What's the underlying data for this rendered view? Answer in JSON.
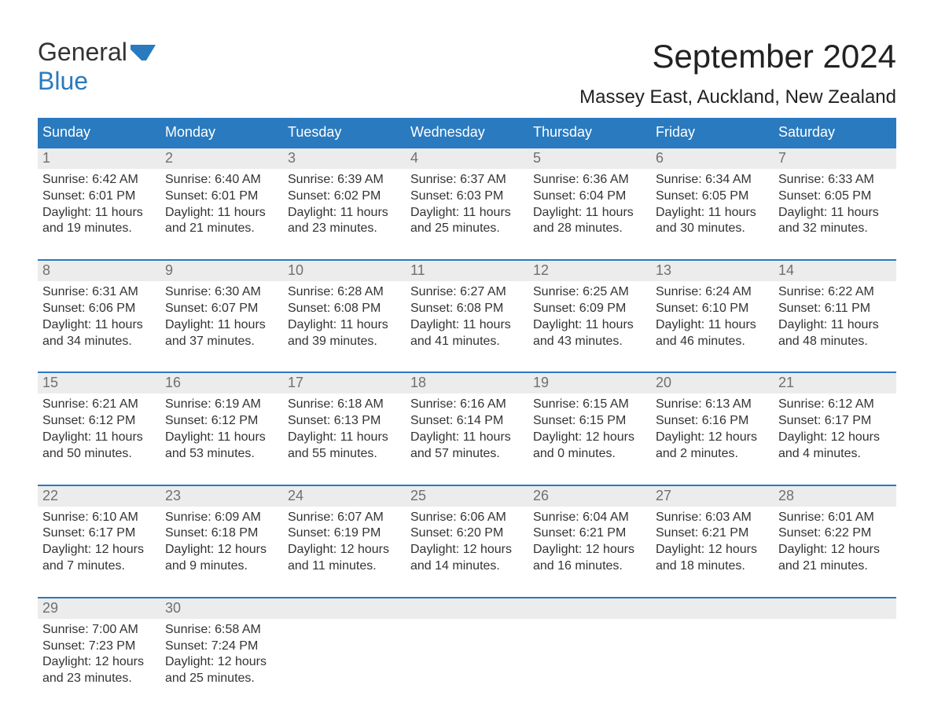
{
  "logo": {
    "text1": "General",
    "text2": "Blue"
  },
  "title": "September 2024",
  "location": "Massey East, Auckland, New Zealand",
  "colors": {
    "brand_blue": "#2a7abf",
    "header_bg": "#2a7abf",
    "header_text": "#ffffff",
    "daynum_bg": "#ececec",
    "daynum_text": "#707070",
    "body_text": "#333333",
    "background": "#ffffff"
  },
  "typography": {
    "title_fontsize": 42,
    "location_fontsize": 24,
    "header_fontsize": 18,
    "daynum_fontsize": 18,
    "detail_fontsize": 16,
    "logo_fontsize": 32
  },
  "dayNames": [
    "Sunday",
    "Monday",
    "Tuesday",
    "Wednesday",
    "Thursday",
    "Friday",
    "Saturday"
  ],
  "weeks": [
    [
      {
        "n": "1",
        "sr": "Sunrise: 6:42 AM",
        "ss": "Sunset: 6:01 PM",
        "d1": "Daylight: 11 hours",
        "d2": "and 19 minutes."
      },
      {
        "n": "2",
        "sr": "Sunrise: 6:40 AM",
        "ss": "Sunset: 6:01 PM",
        "d1": "Daylight: 11 hours",
        "d2": "and 21 minutes."
      },
      {
        "n": "3",
        "sr": "Sunrise: 6:39 AM",
        "ss": "Sunset: 6:02 PM",
        "d1": "Daylight: 11 hours",
        "d2": "and 23 minutes."
      },
      {
        "n": "4",
        "sr": "Sunrise: 6:37 AM",
        "ss": "Sunset: 6:03 PM",
        "d1": "Daylight: 11 hours",
        "d2": "and 25 minutes."
      },
      {
        "n": "5",
        "sr": "Sunrise: 6:36 AM",
        "ss": "Sunset: 6:04 PM",
        "d1": "Daylight: 11 hours",
        "d2": "and 28 minutes."
      },
      {
        "n": "6",
        "sr": "Sunrise: 6:34 AM",
        "ss": "Sunset: 6:05 PM",
        "d1": "Daylight: 11 hours",
        "d2": "and 30 minutes."
      },
      {
        "n": "7",
        "sr": "Sunrise: 6:33 AM",
        "ss": "Sunset: 6:05 PM",
        "d1": "Daylight: 11 hours",
        "d2": "and 32 minutes."
      }
    ],
    [
      {
        "n": "8",
        "sr": "Sunrise: 6:31 AM",
        "ss": "Sunset: 6:06 PM",
        "d1": "Daylight: 11 hours",
        "d2": "and 34 minutes."
      },
      {
        "n": "9",
        "sr": "Sunrise: 6:30 AM",
        "ss": "Sunset: 6:07 PM",
        "d1": "Daylight: 11 hours",
        "d2": "and 37 minutes."
      },
      {
        "n": "10",
        "sr": "Sunrise: 6:28 AM",
        "ss": "Sunset: 6:08 PM",
        "d1": "Daylight: 11 hours",
        "d2": "and 39 minutes."
      },
      {
        "n": "11",
        "sr": "Sunrise: 6:27 AM",
        "ss": "Sunset: 6:08 PM",
        "d1": "Daylight: 11 hours",
        "d2": "and 41 minutes."
      },
      {
        "n": "12",
        "sr": "Sunrise: 6:25 AM",
        "ss": "Sunset: 6:09 PM",
        "d1": "Daylight: 11 hours",
        "d2": "and 43 minutes."
      },
      {
        "n": "13",
        "sr": "Sunrise: 6:24 AM",
        "ss": "Sunset: 6:10 PM",
        "d1": "Daylight: 11 hours",
        "d2": "and 46 minutes."
      },
      {
        "n": "14",
        "sr": "Sunrise: 6:22 AM",
        "ss": "Sunset: 6:11 PM",
        "d1": "Daylight: 11 hours",
        "d2": "and 48 minutes."
      }
    ],
    [
      {
        "n": "15",
        "sr": "Sunrise: 6:21 AM",
        "ss": "Sunset: 6:12 PM",
        "d1": "Daylight: 11 hours",
        "d2": "and 50 minutes."
      },
      {
        "n": "16",
        "sr": "Sunrise: 6:19 AM",
        "ss": "Sunset: 6:12 PM",
        "d1": "Daylight: 11 hours",
        "d2": "and 53 minutes."
      },
      {
        "n": "17",
        "sr": "Sunrise: 6:18 AM",
        "ss": "Sunset: 6:13 PM",
        "d1": "Daylight: 11 hours",
        "d2": "and 55 minutes."
      },
      {
        "n": "18",
        "sr": "Sunrise: 6:16 AM",
        "ss": "Sunset: 6:14 PM",
        "d1": "Daylight: 11 hours",
        "d2": "and 57 minutes."
      },
      {
        "n": "19",
        "sr": "Sunrise: 6:15 AM",
        "ss": "Sunset: 6:15 PM",
        "d1": "Daylight: 12 hours",
        "d2": "and 0 minutes."
      },
      {
        "n": "20",
        "sr": "Sunrise: 6:13 AM",
        "ss": "Sunset: 6:16 PM",
        "d1": "Daylight: 12 hours",
        "d2": "and 2 minutes."
      },
      {
        "n": "21",
        "sr": "Sunrise: 6:12 AM",
        "ss": "Sunset: 6:17 PM",
        "d1": "Daylight: 12 hours",
        "d2": "and 4 minutes."
      }
    ],
    [
      {
        "n": "22",
        "sr": "Sunrise: 6:10 AM",
        "ss": "Sunset: 6:17 PM",
        "d1": "Daylight: 12 hours",
        "d2": "and 7 minutes."
      },
      {
        "n": "23",
        "sr": "Sunrise: 6:09 AM",
        "ss": "Sunset: 6:18 PM",
        "d1": "Daylight: 12 hours",
        "d2": "and 9 minutes."
      },
      {
        "n": "24",
        "sr": "Sunrise: 6:07 AM",
        "ss": "Sunset: 6:19 PM",
        "d1": "Daylight: 12 hours",
        "d2": "and 11 minutes."
      },
      {
        "n": "25",
        "sr": "Sunrise: 6:06 AM",
        "ss": "Sunset: 6:20 PM",
        "d1": "Daylight: 12 hours",
        "d2": "and 14 minutes."
      },
      {
        "n": "26",
        "sr": "Sunrise: 6:04 AM",
        "ss": "Sunset: 6:21 PM",
        "d1": "Daylight: 12 hours",
        "d2": "and 16 minutes."
      },
      {
        "n": "27",
        "sr": "Sunrise: 6:03 AM",
        "ss": "Sunset: 6:21 PM",
        "d1": "Daylight: 12 hours",
        "d2": "and 18 minutes."
      },
      {
        "n": "28",
        "sr": "Sunrise: 6:01 AM",
        "ss": "Sunset: 6:22 PM",
        "d1": "Daylight: 12 hours",
        "d2": "and 21 minutes."
      }
    ],
    [
      {
        "n": "29",
        "sr": "Sunrise: 7:00 AM",
        "ss": "Sunset: 7:23 PM",
        "d1": "Daylight: 12 hours",
        "d2": "and 23 minutes."
      },
      {
        "n": "30",
        "sr": "Sunrise: 6:58 AM",
        "ss": "Sunset: 7:24 PM",
        "d1": "Daylight: 12 hours",
        "d2": "and 25 minutes."
      },
      {
        "n": "",
        "sr": "",
        "ss": "",
        "d1": "",
        "d2": ""
      },
      {
        "n": "",
        "sr": "",
        "ss": "",
        "d1": "",
        "d2": ""
      },
      {
        "n": "",
        "sr": "",
        "ss": "",
        "d1": "",
        "d2": ""
      },
      {
        "n": "",
        "sr": "",
        "ss": "",
        "d1": "",
        "d2": ""
      },
      {
        "n": "",
        "sr": "",
        "ss": "",
        "d1": "",
        "d2": ""
      }
    ]
  ]
}
